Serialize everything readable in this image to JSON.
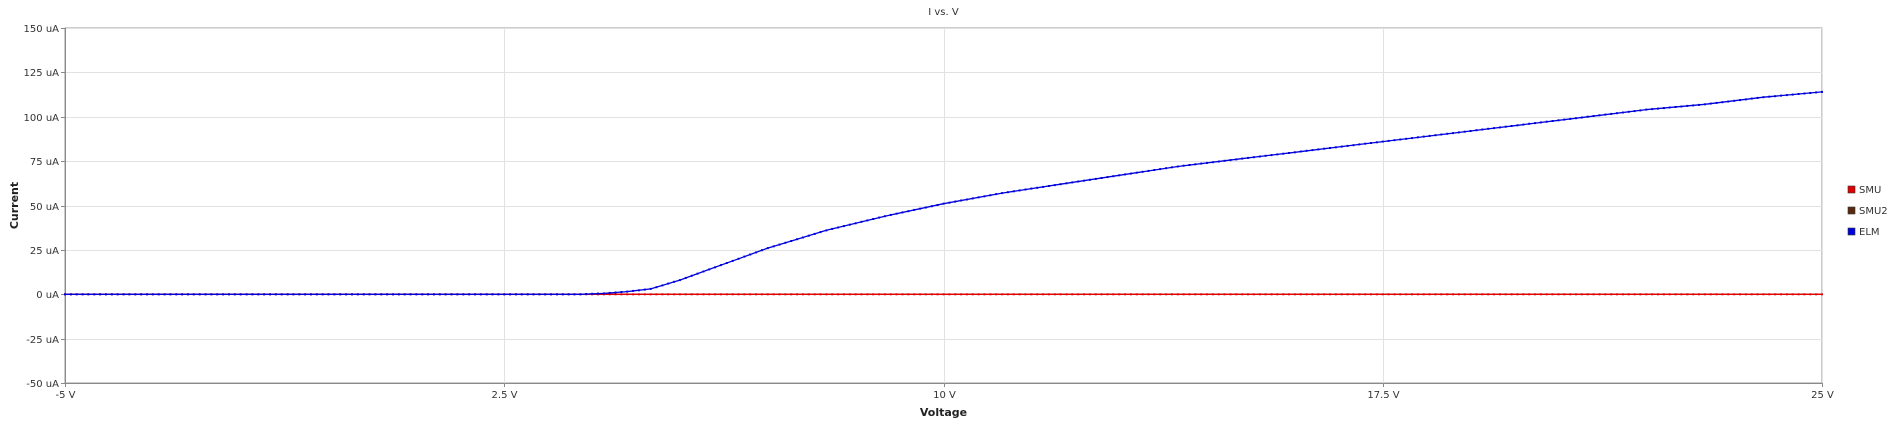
{
  "chart_data": {
    "type": "line",
    "title": "I vs. V",
    "xlabel": "Voltage",
    "ylabel": "Current",
    "xlim": [
      -5,
      25
    ],
    "ylim": [
      -50,
      150
    ],
    "grid": true,
    "legend_position": "right",
    "x_ticks": [
      -5,
      2.5,
      10,
      17.5,
      25
    ],
    "x_tick_labels": [
      "-5 V",
      "2.5 V",
      "10 V",
      "17.5 V",
      "25 V"
    ],
    "y_ticks": [
      -50,
      -25,
      0,
      25,
      50,
      75,
      100,
      125,
      150
    ],
    "y_tick_labels": [
      "-50 uA",
      "-25 uA",
      "0 uA",
      "25 uA",
      "50 uA",
      "75 uA",
      "100 uA",
      "125 uA",
      "150 uA"
    ],
    "series": [
      {
        "name": "SMU",
        "color": "#e00000",
        "x": [
          -5,
          25
        ],
        "y": [
          0,
          0
        ]
      },
      {
        "name": "SMU2",
        "color": "#5a2a10",
        "x": [
          -5,
          25
        ],
        "y": [
          0,
          0
        ]
      },
      {
        "name": "ELM",
        "color": "#0000dd",
        "x": [
          -5,
          2.5,
          3.8,
          4.2,
          4.6,
          5,
          5.5,
          6,
          6.5,
          7,
          7.5,
          8,
          9,
          10,
          11,
          12,
          13,
          14,
          15,
          16,
          17,
          17.5,
          18,
          19,
          20,
          21,
          22,
          23,
          24,
          25
        ],
        "y": [
          0,
          0,
          0,
          0.5,
          1.5,
          3,
          8,
          14,
          20,
          26,
          31,
          36,
          44,
          51,
          57,
          62,
          67,
          72,
          76,
          80,
          84,
          86,
          88,
          92,
          96,
          100,
          104,
          107,
          111,
          114
        ]
      }
    ]
  }
}
